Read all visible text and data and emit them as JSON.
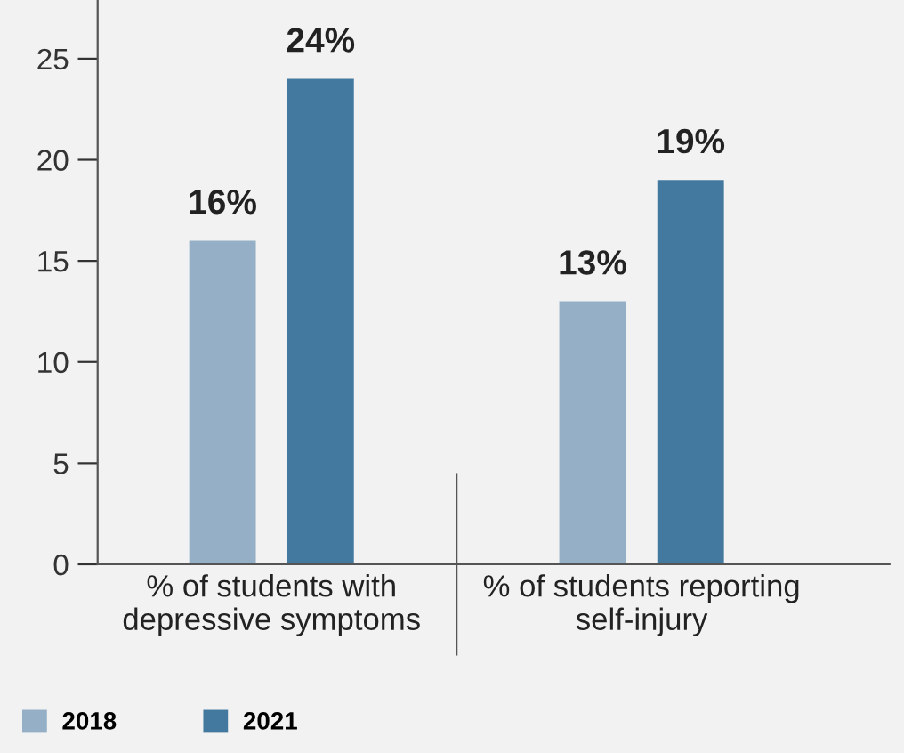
{
  "chart_data": {
    "type": "bar",
    "categories": [
      "% of students with\ndepressive symptoms",
      "% of students reporting\nself-injury"
    ],
    "series": [
      {
        "name": "2018",
        "color": "#94afc6",
        "values": [
          16,
          13
        ],
        "value_labels": [
          "16%",
          "13%"
        ]
      },
      {
        "name": "2021",
        "color": "#44799f",
        "values": [
          24,
          19
        ],
        "value_labels": [
          "24%",
          "19%"
        ]
      }
    ],
    "ylim": [
      0,
      27.9
    ],
    "yticks": [
      0,
      5,
      10,
      15,
      20,
      25
    ],
    "grid": false,
    "legend": "bottom left"
  }
}
